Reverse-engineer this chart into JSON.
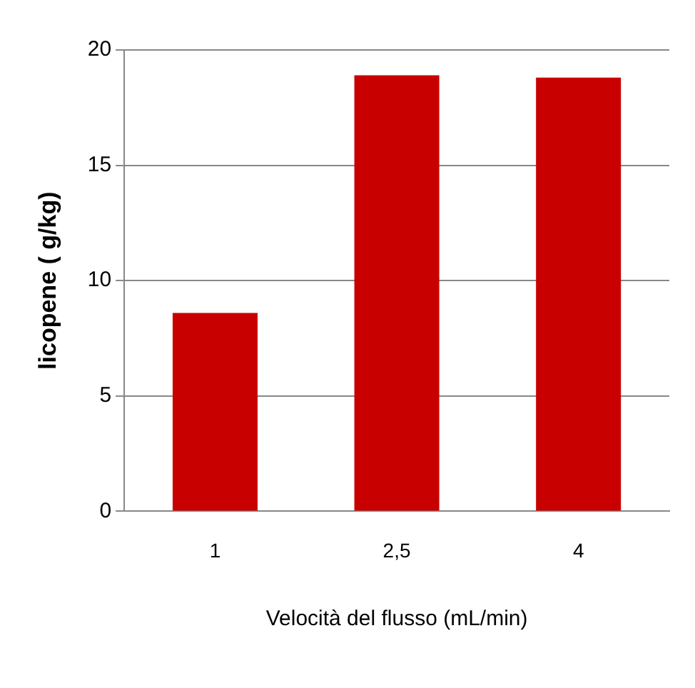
{
  "chart_data": {
    "type": "bar",
    "xlabel": "Velocità del flusso (mL/min)",
    "ylabel": "licopene ( g/kg)",
    "categories": [
      "1",
      "2,5",
      "4"
    ],
    "values": [
      8.6,
      18.9,
      18.8
    ],
    "color": "#c80000",
    "ylim": [
      0,
      20
    ],
    "yticks": [
      0,
      5,
      10,
      15,
      20
    ],
    "grid": "y",
    "legend": false
  }
}
